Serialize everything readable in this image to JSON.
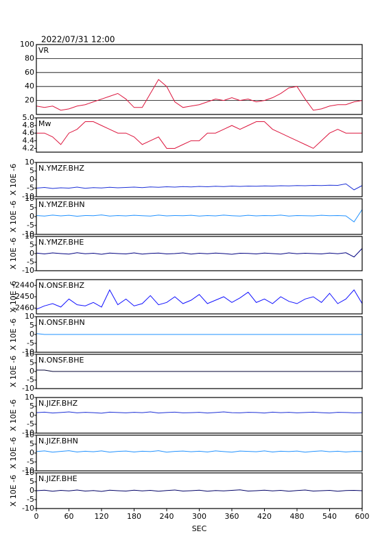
{
  "chart_data": [
    {
      "type": "line",
      "title": "2022/07/31 12:00",
      "label": "VR",
      "color": "#dc143c",
      "grid": true,
      "x": [
        0,
        15,
        30,
        45,
        60,
        75,
        90,
        105,
        120,
        135,
        150,
        165,
        180,
        195,
        210,
        225,
        240,
        255,
        270,
        285,
        300,
        315,
        330,
        345,
        360,
        375,
        390,
        405,
        420,
        435,
        450,
        465,
        480,
        495,
        510,
        525,
        540,
        555,
        570,
        585,
        600
      ],
      "values": [
        12,
        10,
        12,
        6,
        8,
        12,
        14,
        18,
        22,
        26,
        30,
        22,
        10,
        10,
        30,
        50,
        40,
        18,
        10,
        12,
        14,
        18,
        22,
        20,
        24,
        20,
        22,
        18,
        20,
        24,
        30,
        38,
        40,
        22,
        6,
        8,
        12,
        14,
        14,
        18,
        20
      ],
      "xlim": [
        0,
        600
      ],
      "ylim": [
        0,
        100
      ],
      "yticks": [
        20,
        40,
        60,
        80,
        100
      ]
    },
    {
      "type": "line",
      "label": "Mw",
      "color": "#dc143c",
      "grid": false,
      "x": [
        0,
        15,
        30,
        45,
        60,
        75,
        90,
        105,
        120,
        135,
        150,
        165,
        180,
        195,
        210,
        225,
        240,
        255,
        270,
        285,
        300,
        315,
        330,
        345,
        360,
        375,
        390,
        405,
        420,
        435,
        450,
        465,
        480,
        495,
        510,
        525,
        540,
        555,
        570,
        585,
        600
      ],
      "values": [
        4.6,
        4.6,
        4.5,
        4.3,
        4.6,
        4.7,
        4.9,
        4.9,
        4.8,
        4.7,
        4.6,
        4.6,
        4.5,
        4.3,
        4.4,
        4.5,
        4.2,
        4.2,
        4.3,
        4.4,
        4.4,
        4.6,
        4.6,
        4.7,
        4.8,
        4.7,
        4.8,
        4.9,
        4.9,
        4.7,
        4.6,
        4.5,
        4.4,
        4.3,
        4.2,
        4.4,
        4.6,
        4.7,
        4.6,
        4.6,
        4.6
      ],
      "xlim": [
        0,
        600
      ],
      "ylim": [
        4.1,
        5.0
      ],
      "yticks": [
        {
          "value": 5,
          "label": "5.0"
        },
        4.8,
        4.6,
        4.4,
        4.2
      ]
    },
    {
      "type": "line",
      "label": "N.YMZF.BHZ",
      "ylabel": "X 10E -6",
      "color": "#1a2ed6",
      "grid": false,
      "x": [
        0,
        15,
        30,
        45,
        60,
        75,
        90,
        105,
        120,
        135,
        150,
        165,
        180,
        195,
        210,
        225,
        240,
        255,
        270,
        285,
        300,
        315,
        330,
        345,
        360,
        375,
        390,
        405,
        420,
        435,
        450,
        465,
        480,
        495,
        510,
        525,
        540,
        555,
        570,
        585,
        600
      ],
      "values": [
        -5,
        -4.6,
        -5.2,
        -4.8,
        -5,
        -4.4,
        -5.1,
        -4.7,
        -4.9,
        -4.5,
        -4.8,
        -4.6,
        -4.4,
        -4.7,
        -4.3,
        -4.5,
        -4.2,
        -4.4,
        -4.1,
        -4.3,
        -4,
        -4.2,
        -3.9,
        -4.1,
        -3.8,
        -4,
        -3.8,
        -3.9,
        -3.7,
        -3.8,
        -3.6,
        -3.7,
        -3.5,
        -3.6,
        -3.4,
        -3.5,
        -3.3,
        -3.4,
        -2.5,
        -6,
        -3.5
      ],
      "xlim": [
        0,
        600
      ],
      "ylim": [
        -10,
        10
      ],
      "yticks": [
        10,
        5,
        0,
        -5,
        -10
      ]
    },
    {
      "type": "line",
      "label": "N.YMZF.BHN",
      "ylabel": "X 10E -6",
      "color": "#1e90ff",
      "grid": false,
      "x": [
        0,
        15,
        30,
        45,
        60,
        75,
        90,
        105,
        120,
        135,
        150,
        165,
        180,
        195,
        210,
        225,
        240,
        255,
        270,
        285,
        300,
        315,
        330,
        345,
        360,
        375,
        390,
        405,
        420,
        435,
        450,
        465,
        480,
        495,
        510,
        525,
        540,
        555,
        570,
        585,
        600
      ],
      "values": [
        0.6,
        0.3,
        0.8,
        0.4,
        0.7,
        0.2,
        0.6,
        0.5,
        0.9,
        0.3,
        0.6,
        0.4,
        0.7,
        0.5,
        0.3,
        0.8,
        0.4,
        0.6,
        0.5,
        0.7,
        0.3,
        0.6,
        0.4,
        0.8,
        0.5,
        0.3,
        0.7,
        0.4,
        0.6,
        0.5,
        0.8,
        0.3,
        0.6,
        0.5,
        0.4,
        0.7,
        0.5,
        0.6,
        0.4,
        -3,
        4
      ],
      "xlim": [
        0,
        600
      ],
      "ylim": [
        -10,
        10
      ],
      "yticks": [
        10,
        5,
        0,
        -5,
        -10
      ]
    },
    {
      "type": "line",
      "label": "N.YMZF.BHE",
      "ylabel": "X 10E -6",
      "color": "#000080",
      "grid": false,
      "x": [
        0,
        15,
        30,
        45,
        60,
        75,
        90,
        105,
        120,
        135,
        150,
        165,
        180,
        195,
        210,
        225,
        240,
        255,
        270,
        285,
        300,
        315,
        330,
        345,
        360,
        375,
        390,
        405,
        420,
        435,
        450,
        465,
        480,
        495,
        510,
        525,
        540,
        555,
        570,
        585,
        600
      ],
      "values": [
        0.3,
        -0.2,
        0.4,
        0,
        -0.3,
        0.5,
        -0.1,
        0.2,
        -0.4,
        0.3,
        0,
        -0.2,
        0.4,
        -0.3,
        0.1,
        0.3,
        -0.2,
        0,
        0.4,
        -0.3,
        0.2,
        -0.1,
        0.3,
        0,
        -0.4,
        0.2,
        0.1,
        -0.2,
        0.3,
        0,
        -0.3,
        0.4,
        -0.1,
        0.2,
        0,
        -0.2,
        0.3,
        -0.1,
        0.5,
        -2,
        3
      ],
      "xlim": [
        0,
        600
      ],
      "ylim": [
        -10,
        10
      ],
      "yticks": [
        10,
        5,
        0,
        -5,
        -10
      ]
    },
    {
      "type": "line",
      "label": "N.ONSF.BHZ",
      "ylabel": "X 10E -6",
      "color": "#1010ff",
      "grid": false,
      "x": [
        0,
        15,
        30,
        45,
        60,
        75,
        90,
        105,
        120,
        135,
        150,
        165,
        180,
        195,
        210,
        225,
        240,
        255,
        270,
        285,
        300,
        315,
        330,
        345,
        360,
        375,
        390,
        405,
        420,
        435,
        450,
        465,
        480,
        495,
        510,
        525,
        540,
        555,
        570,
        585,
        600
      ],
      "values": [
        -2461,
        -2458,
        -2456,
        -2459,
        -2452,
        -2457,
        -2458,
        -2455,
        -2459,
        -2444,
        -2457,
        -2452,
        -2458,
        -2456,
        -2449,
        -2457,
        -2455,
        -2450,
        -2456,
        -2453,
        -2448,
        -2456,
        -2453,
        -2450,
        -2455,
        -2451,
        -2446,
        -2455,
        -2452,
        -2456,
        -2450,
        -2454,
        -2456,
        -2452,
        -2450,
        -2455,
        -2447,
        -2456,
        -2452,
        -2444,
        -2456
      ],
      "xlim": [
        0,
        600
      ],
      "ylim": [
        -2465,
        -2435
      ],
      "yticks": [
        -2440,
        -2450,
        -2460
      ]
    },
    {
      "type": "line",
      "label": "N.ONSF.BHN",
      "ylabel": "X 10E -6",
      "color": "#1e90ff",
      "grid": false,
      "x": [
        0,
        15,
        30,
        45,
        60,
        75,
        90,
        105,
        120,
        135,
        150,
        165,
        180,
        195,
        210,
        225,
        240,
        255,
        270,
        285,
        300,
        315,
        330,
        345,
        360,
        375,
        390,
        405,
        420,
        435,
        450,
        465,
        480,
        495,
        510,
        525,
        540,
        555,
        570,
        585,
        600
      ],
      "values": [
        0.5,
        0,
        0,
        0,
        0,
        0,
        0,
        0,
        0,
        0,
        0,
        0,
        0,
        0,
        0,
        0,
        0,
        0,
        0,
        0,
        0,
        0,
        0,
        0,
        0,
        0,
        0,
        0,
        0,
        0,
        0,
        0,
        0,
        0,
        0,
        0,
        0,
        0,
        0,
        0,
        0
      ],
      "xlim": [
        0,
        600
      ],
      "ylim": [
        -10,
        10
      ],
      "yticks": [
        10,
        5,
        0,
        -5,
        -10
      ]
    },
    {
      "type": "line",
      "label": "N.ONSF.BHE",
      "ylabel": "X 10E -6",
      "color": "#000033",
      "grid": false,
      "x": [
        0,
        15,
        30,
        45,
        60,
        75,
        90,
        105,
        120,
        135,
        150,
        165,
        180,
        195,
        210,
        225,
        240,
        255,
        270,
        285,
        300,
        315,
        330,
        345,
        360,
        375,
        390,
        405,
        420,
        435,
        450,
        465,
        480,
        495,
        510,
        525,
        540,
        555,
        570,
        585,
        600
      ],
      "values": [
        0.8,
        0.8,
        0,
        0,
        0,
        0,
        0,
        0,
        0,
        0,
        0,
        0,
        0,
        0,
        0,
        0,
        0,
        0,
        0,
        0,
        0,
        0,
        0,
        0,
        0,
        0,
        0,
        0,
        0,
        0,
        0,
        0,
        0,
        0,
        0,
        0,
        0,
        0,
        0,
        0,
        0
      ],
      "xlim": [
        0,
        600
      ],
      "ylim": [
        -10,
        10
      ],
      "yticks": [
        10,
        5,
        0,
        -5,
        -10
      ]
    },
    {
      "type": "line",
      "label": "N.JIZF.BHZ",
      "ylabel": "X 10E -6",
      "color": "#1a2ed6",
      "grid": false,
      "x": [
        0,
        15,
        30,
        45,
        60,
        75,
        90,
        105,
        120,
        135,
        150,
        165,
        180,
        195,
        210,
        225,
        240,
        255,
        270,
        285,
        300,
        315,
        330,
        345,
        360,
        375,
        390,
        405,
        420,
        435,
        450,
        465,
        480,
        495,
        510,
        525,
        540,
        555,
        570,
        585,
        600
      ],
      "values": [
        1.5,
        1.8,
        1.3,
        1.6,
        1.9,
        1.4,
        1.7,
        1.5,
        1.2,
        1.8,
        1.6,
        1.4,
        1.7,
        1.5,
        1.9,
        1.3,
        1.6,
        1.8,
        1.4,
        1.5,
        1.7,
        1.3,
        1.6,
        1.9,
        1.5,
        1.4,
        1.7,
        1.6,
        1.3,
        1.8,
        1.5,
        1.7,
        1.4,
        1.6,
        1.8,
        1.5,
        1.3,
        1.7,
        1.6,
        1.4,
        1.5
      ],
      "xlim": [
        0,
        600
      ],
      "ylim": [
        -10,
        10
      ],
      "yticks": [
        10,
        5,
        0,
        -5,
        -10
      ]
    },
    {
      "type": "line",
      "label": "N.JIZF.BHN",
      "ylabel": "X 10E -6",
      "color": "#1e90ff",
      "grid": false,
      "x": [
        0,
        15,
        30,
        45,
        60,
        75,
        90,
        105,
        120,
        135,
        150,
        165,
        180,
        195,
        210,
        225,
        240,
        255,
        270,
        285,
        300,
        315,
        330,
        345,
        360,
        375,
        390,
        405,
        420,
        435,
        450,
        465,
        480,
        495,
        510,
        525,
        540,
        555,
        570,
        585,
        600
      ],
      "values": [
        0.8,
        1.2,
        0.5,
        0.9,
        1.3,
        0.6,
        1,
        0.7,
        1.2,
        0.5,
        0.9,
        1.1,
        0.6,
        1,
        0.8,
        1.3,
        0.5,
        0.9,
        1.1,
        0.7,
        1,
        0.6,
        1.2,
        0.8,
        0.5,
        1.1,
        0.9,
        0.7,
        1.2,
        0.6,
        1,
        0.8,
        1.1,
        0.5,
        0.9,
        1.2,
        0.7,
        1,
        0.6,
        0.9,
        0.8
      ],
      "xlim": [
        0,
        600
      ],
      "ylim": [
        -10,
        10
      ],
      "yticks": [
        10,
        5,
        0,
        -5,
        -10
      ]
    },
    {
      "type": "line",
      "label": "N.JIZF.BHE",
      "ylabel": "X 10E -6",
      "color": "#000066",
      "grid": false,
      "x": [
        0,
        15,
        30,
        45,
        60,
        75,
        90,
        105,
        120,
        135,
        150,
        165,
        180,
        195,
        210,
        225,
        240,
        255,
        270,
        285,
        300,
        315,
        330,
        345,
        360,
        375,
        390,
        405,
        420,
        435,
        450,
        465,
        480,
        495,
        510,
        525,
        540,
        555,
        570,
        585,
        600
      ],
      "values": [
        0,
        0.3,
        -0.3,
        0.2,
        -0.1,
        0.4,
        -0.2,
        0.1,
        -0.4,
        0.3,
        0,
        -0.2,
        0.3,
        -0.1,
        0.2,
        -0.3,
        0.1,
        0.4,
        -0.2,
        0,
        0.3,
        -0.3,
        0.1,
        -0.1,
        0.2,
        0.5,
        -0.2,
        0,
        0.3,
        -0.1,
        0.2,
        -0.3,
        0.1,
        0.4,
        -0.2,
        0,
        0.2,
        -0.3,
        0.1,
        0.2,
        0
      ],
      "xlim": [
        0,
        600
      ],
      "ylim": [
        -10,
        10
      ],
      "yticks": [
        10,
        5,
        0,
        -5,
        -10
      ],
      "xticks": [
        0,
        60,
        120,
        180,
        240,
        300,
        360,
        420,
        480,
        540,
        600
      ],
      "xlabel": "SEC"
    }
  ]
}
